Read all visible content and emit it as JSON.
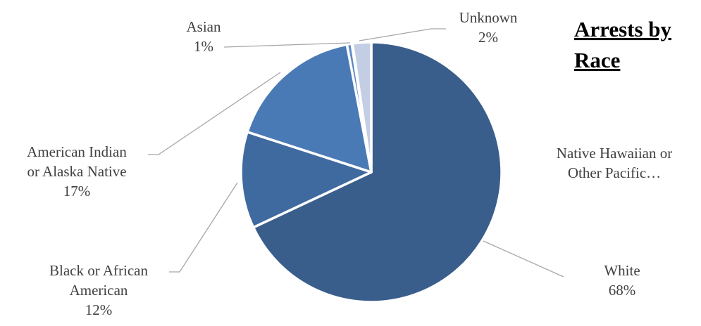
{
  "chart_data": {
    "type": "pie",
    "title": "Arrests by Race",
    "title_lines": [
      "Arrests by",
      "Race"
    ],
    "slices": [
      {
        "name": "White",
        "value": 68,
        "label": "68%",
        "label_lines": [
          "White",
          "68%"
        ],
        "color": "#3a5e8c"
      },
      {
        "name": "Black or African American",
        "value": 12,
        "label": "12%",
        "label_lines": [
          "Black or African",
          "American",
          "12%"
        ],
        "color": "#3f6aa0"
      },
      {
        "name": "American Indian or Alaska Native",
        "value": 17,
        "label": "17%",
        "label_lines": [
          "American Indian",
          "or Alaska Native",
          "17%"
        ],
        "color": "#4a7ab5"
      },
      {
        "name": "Asian",
        "value": 0.6,
        "label": "1%",
        "label_lines": [
          "Asian",
          "1%"
        ],
        "color": "#5b8ac6"
      },
      {
        "name": "Native Hawaiian or Other Pacific…",
        "value": 0.1,
        "label": "",
        "label_lines": [
          "Native Hawaiian or",
          "Other Pacific…"
        ],
        "color": "#8fafd9"
      },
      {
        "name": "Unknown",
        "value": 2.3,
        "label": "2%",
        "label_lines": [
          "Unknown",
          "2%"
        ],
        "color": "#c3cde3"
      }
    ],
    "legend": "none"
  }
}
